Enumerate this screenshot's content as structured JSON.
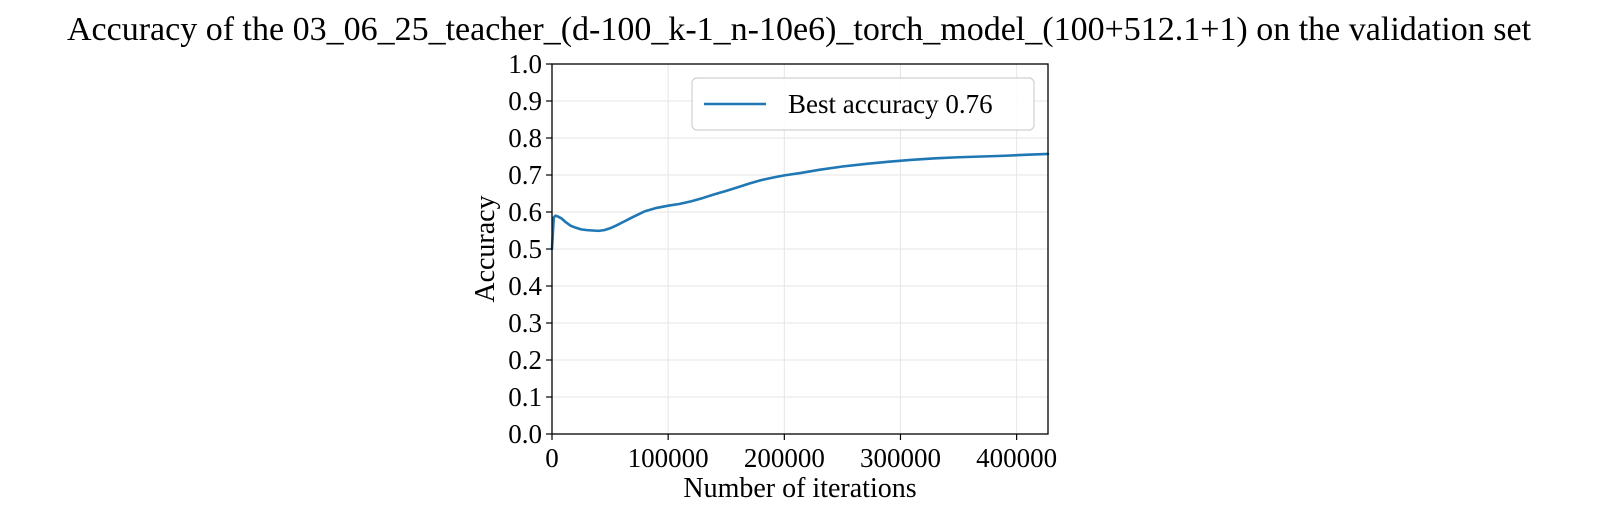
{
  "chart_data": {
    "type": "line",
    "title": "Accuracy of the 03_06_25_teacher_(d-100_k-1_n-10e6)_torch_model_(100+512.1+1) on the validation set",
    "xlabel": "Number of iterations",
    "ylabel": "Accuracy",
    "xlim": [
      0,
      427000
    ],
    "ylim": [
      0.0,
      1.0
    ],
    "xticks": [
      0,
      100000,
      200000,
      300000,
      400000
    ],
    "xtick_labels": [
      "0",
      "100000",
      "200000",
      "300000",
      "400000"
    ],
    "yticks": [
      0.0,
      0.1,
      0.2,
      0.3,
      0.4,
      0.5,
      0.6,
      0.7,
      0.8,
      0.9,
      1.0
    ],
    "ytick_labels": [
      "0.0",
      "0.1",
      "0.2",
      "0.3",
      "0.4",
      "0.5",
      "0.6",
      "0.7",
      "0.8",
      "0.9",
      "1.0"
    ],
    "grid": true,
    "legend_position": "top-right",
    "series": [
      {
        "name": "Best accuracy 0.76",
        "color": "#1f77b4",
        "x": [
          0,
          1500,
          3000,
          5000,
          8000,
          12000,
          16000,
          20000,
          25000,
          30000,
          35000,
          40000,
          45000,
          50000,
          55000,
          60000,
          70000,
          80000,
          90000,
          100000,
          110000,
          120000,
          130000,
          140000,
          150000,
          160000,
          170000,
          180000,
          190000,
          200000,
          215000,
          230000,
          250000,
          270000,
          290000,
          310000,
          330000,
          350000,
          370000,
          390000,
          410000,
          427000
        ],
        "y": [
          0.5,
          0.585,
          0.59,
          0.588,
          0.583,
          0.572,
          0.563,
          0.558,
          0.553,
          0.551,
          0.55,
          0.549,
          0.551,
          0.556,
          0.563,
          0.571,
          0.587,
          0.602,
          0.611,
          0.617,
          0.622,
          0.629,
          0.638,
          0.648,
          0.657,
          0.667,
          0.677,
          0.686,
          0.693,
          0.699,
          0.706,
          0.714,
          0.723,
          0.73,
          0.736,
          0.741,
          0.745,
          0.748,
          0.75,
          0.752,
          0.755,
          0.757
        ]
      }
    ]
  }
}
